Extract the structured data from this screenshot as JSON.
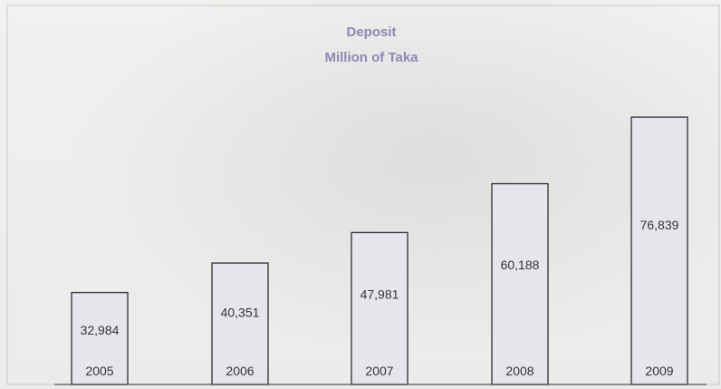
{
  "chart_data": {
    "type": "bar",
    "title": "Deposit",
    "subtitle": "Million of Taka",
    "xlabel": "",
    "ylabel": "",
    "categories": [
      "2005",
      "2006",
      "2007",
      "2008",
      "2009"
    ],
    "values": [
      32984,
      40351,
      47981,
      60188,
      76839
    ],
    "value_labels": [
      "32,984",
      "40,351",
      "47,981",
      "60,188",
      "76,839"
    ],
    "ylim": [
      10000,
      78000
    ],
    "grid": false,
    "legend": "none",
    "colors": {
      "bar_fill": "#e7e5ec",
      "bar_stroke": "#3c3c3c",
      "title": "#8b88b3"
    }
  }
}
